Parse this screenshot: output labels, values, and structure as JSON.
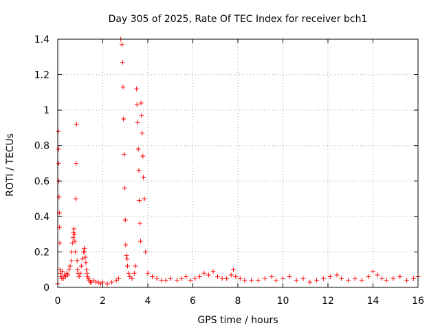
{
  "chart_data": {
    "type": "scatter",
    "title": "Day 305 of 2025, Rate Of TEC Index for receiver bch1",
    "xlabel": "GPS time / hours",
    "ylabel": "ROTI / TECUs",
    "xlim": [
      0,
      16
    ],
    "ylim": [
      0,
      1.4
    ],
    "xticks": [
      "0",
      "2",
      "4",
      "6",
      "8",
      "10",
      "12",
      "14",
      "16"
    ],
    "yticks": [
      "0",
      "0.2",
      "0.4",
      "0.6",
      "0.8",
      "1",
      "1.2",
      "1.4"
    ],
    "grid": true,
    "marker": "plus",
    "color": "#ff0000",
    "series": [
      {
        "x": [
          0.0,
          0.02,
          0.03,
          0.04,
          0.05,
          0.06,
          0.07,
          0.08,
          0.09,
          0.1,
          0.12,
          0.15,
          0.18,
          0.2,
          0.25,
          0.3,
          0.35,
          0.4,
          0.45,
          0.5,
          0.55,
          0.6,
          0.62,
          0.65,
          0.68,
          0.7,
          0.72,
          0.74,
          0.76,
          0.78,
          0.8,
          0.82,
          0.84,
          0.86,
          0.88,
          0.9,
          0.95,
          1.0,
          1.05,
          1.1,
          1.15,
          1.18,
          1.2,
          1.22,
          1.25,
          1.28,
          1.3,
          1.32,
          1.35,
          1.4,
          1.45,
          1.5,
          1.6,
          1.7,
          1.8,
          1.9,
          2.0,
          2.2,
          2.4,
          2.6,
          2.7,
          2.8,
          2.85,
          2.88,
          2.9,
          2.92,
          2.95,
          2.98,
          3.0,
          3.02,
          3.05,
          3.08,
          3.1,
          3.15,
          3.2,
          3.3,
          3.4,
          3.45,
          3.5,
          3.52,
          3.55,
          3.58,
          3.6,
          3.62,
          3.65,
          3.68,
          3.7,
          3.72,
          3.75,
          3.78,
          3.8,
          3.85,
          3.9,
          4.0,
          4.2,
          4.4,
          4.6,
          4.8,
          5.0,
          5.3,
          5.5,
          5.7,
          5.9,
          6.1,
          6.3,
          6.5,
          6.7,
          6.9,
          7.1,
          7.3,
          7.5,
          7.7,
          7.8,
          7.9,
          8.1,
          8.3,
          8.6,
          8.9,
          9.2,
          9.5,
          9.7,
          10.0,
          10.3,
          10.6,
          10.9,
          11.2,
          11.5,
          11.8,
          12.1,
          12.4,
          12.6,
          12.9,
          13.2,
          13.5,
          13.8,
          14.0,
          14.2,
          14.4,
          14.6,
          14.9,
          15.2,
          15.5,
          15.8,
          16.0
        ],
        "y": [
          0.02,
          0.88,
          0.78,
          0.7,
          0.6,
          0.51,
          0.42,
          0.34,
          0.25,
          0.1,
          0.08,
          0.06,
          0.05,
          0.09,
          0.05,
          0.07,
          0.06,
          0.08,
          0.07,
          0.1,
          0.12,
          0.15,
          0.2,
          0.25,
          0.28,
          0.31,
          0.33,
          0.3,
          0.26,
          0.2,
          0.5,
          0.7,
          0.92,
          0.15,
          0.1,
          0.08,
          0.06,
          0.08,
          0.12,
          0.16,
          0.2,
          0.22,
          0.2,
          0.17,
          0.14,
          0.1,
          0.08,
          0.06,
          0.05,
          0.04,
          0.03,
          0.03,
          0.04,
          0.03,
          0.03,
          0.02,
          0.03,
          0.02,
          0.03,
          0.04,
          0.05,
          1.4,
          1.37,
          1.27,
          1.13,
          0.95,
          0.75,
          0.56,
          0.38,
          0.24,
          0.18,
          0.16,
          0.12,
          0.08,
          0.06,
          0.05,
          0.08,
          0.12,
          1.12,
          1.03,
          0.93,
          0.78,
          0.66,
          0.49,
          0.36,
          0.26,
          1.04,
          0.97,
          0.87,
          0.74,
          0.62,
          0.5,
          0.2,
          0.08,
          0.06,
          0.05,
          0.04,
          0.04,
          0.05,
          0.04,
          0.05,
          0.06,
          0.04,
          0.05,
          0.06,
          0.08,
          0.07,
          0.09,
          0.06,
          0.05,
          0.05,
          0.07,
          0.1,
          0.06,
          0.05,
          0.04,
          0.04,
          0.04,
          0.05,
          0.06,
          0.04,
          0.05,
          0.06,
          0.04,
          0.05,
          0.03,
          0.04,
          0.05,
          0.06,
          0.07,
          0.05,
          0.04,
          0.05,
          0.04,
          0.06,
          0.09,
          0.07,
          0.05,
          0.04,
          0.05,
          0.06,
          0.04,
          0.05,
          0.06
        ]
      }
    ]
  }
}
